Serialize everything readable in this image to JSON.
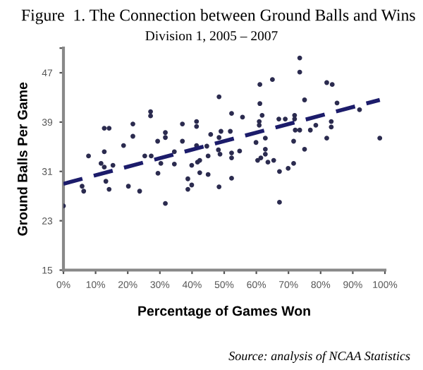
{
  "chart_data": {
    "type": "scatter",
    "title": "Figure  1. The Connection between Ground Balls and Wins",
    "subtitle": "Division 1, 2005 – 2007",
    "xlabel": "Percentage of Games Won",
    "ylabel": "Ground Balls Per Game",
    "annotations": [
      "Source: analysis of NCAA Statistics"
    ],
    "xlim": [
      0,
      100
    ],
    "xticks": [
      {
        "value": 0,
        "label": "0%"
      },
      {
        "value": 10,
        "label": "10%"
      },
      {
        "value": 20,
        "label": "20%"
      },
      {
        "value": 30,
        "label": "30%"
      },
      {
        "value": 40,
        "label": "40%"
      },
      {
        "value": 50,
        "label": "50%"
      },
      {
        "value": 60,
        "label": "60%"
      },
      {
        "value": 70,
        "label": "70%"
      },
      {
        "value": 80,
        "label": "80%"
      },
      {
        "value": 90,
        "label": "90%"
      },
      {
        "value": 100,
        "label": "100%"
      }
    ],
    "ylim": [
      15,
      51
    ],
    "yticks": [
      15,
      23,
      31,
      39,
      47,
      {
        "value": 51,
        "label": null
      }
    ],
    "grid": false,
    "legend": false,
    "series": [
      {
        "color": "#2b2b4f",
        "marker": "circle",
        "x": [
          0,
          7.8,
          5.8,
          6.3,
          12.7,
          14.2,
          12.7,
          11.7,
          12.7,
          15.4,
          13.2,
          14.2,
          18.7,
          20.2,
          21.6,
          21.6,
          23.7,
          25.3,
          27.3,
          27.1,
          27.1,
          29.3,
          29.4,
          31.7,
          31.7,
          30.3,
          31.7,
          34.5,
          34.5,
          37.0,
          37.0,
          38.7,
          38.7,
          39.9,
          39.9,
          41.4,
          41.4,
          41.7,
          42.4,
          41.4,
          42.4,
          44.6,
          45.0,
          45.0,
          45.8,
          48.4,
          48.2,
          48.7,
          48.4,
          61.1,
          65.0,
          61.1,
          52.3,
          55.7,
          61.8,
          60.9,
          60.9,
          67.0,
          69.0,
          71.9,
          71.9,
          75.0,
          81.9,
          83.6,
          85.1,
          92.1,
          98.4,
          83.3,
          83.3,
          81.9,
          78.5,
          76.8,
          73.5,
          72.1,
          71.6,
          75.0,
          71.6,
          69.9,
          67.2,
          67.2,
          62.8,
          62.8,
          62.8,
          63.6,
          61.4,
          60.4,
          65.4,
          59.9,
          54.8,
          52.3,
          52.3,
          52.3,
          49.0,
          51.9,
          48.4,
          73.5,
          73.5
        ],
        "values": [
          25.4,
          33.5,
          28.6,
          27.8,
          38.0,
          38.0,
          34.2,
          32.3,
          31.7,
          32.0,
          29.4,
          28.1,
          35.2,
          28.6,
          38.7,
          36.7,
          27.8,
          33.5,
          33.5,
          40.7,
          40.0,
          35.9,
          30.7,
          37.3,
          36.5,
          32.3,
          25.8,
          34.2,
          32.2,
          38.7,
          35.9,
          29.8,
          28.1,
          28.8,
          32.0,
          39.1,
          38.3,
          32.5,
          32.8,
          35.2,
          30.8,
          35.1,
          33.5,
          30.5,
          37.0,
          43.1,
          34.5,
          33.8,
          28.5,
          45.1,
          45.9,
          42.0,
          40.4,
          39.8,
          40.1,
          39.1,
          38.5,
          39.5,
          39.5,
          40.1,
          39.5,
          42.6,
          45.4,
          45.1,
          42.1,
          41.0,
          36.4,
          39.1,
          38.2,
          36.4,
          38.5,
          37.7,
          37.7,
          37.7,
          35.9,
          34.6,
          32.3,
          31.5,
          31.0,
          26.0,
          36.4,
          34.6,
          33.8,
          32.5,
          33.2,
          32.8,
          32.8,
          35.7,
          34.3,
          34.0,
          33.2,
          29.9,
          37.5,
          37.5,
          36.5,
          49.4,
          47.1
        ]
      },
      {
        "type": "line",
        "color": "#1c1c6b",
        "line_style": "dashed",
        "marker": "none",
        "x": [
          0,
          98.4
        ],
        "values": [
          29.0,
          42.6
        ]
      }
    ]
  }
}
